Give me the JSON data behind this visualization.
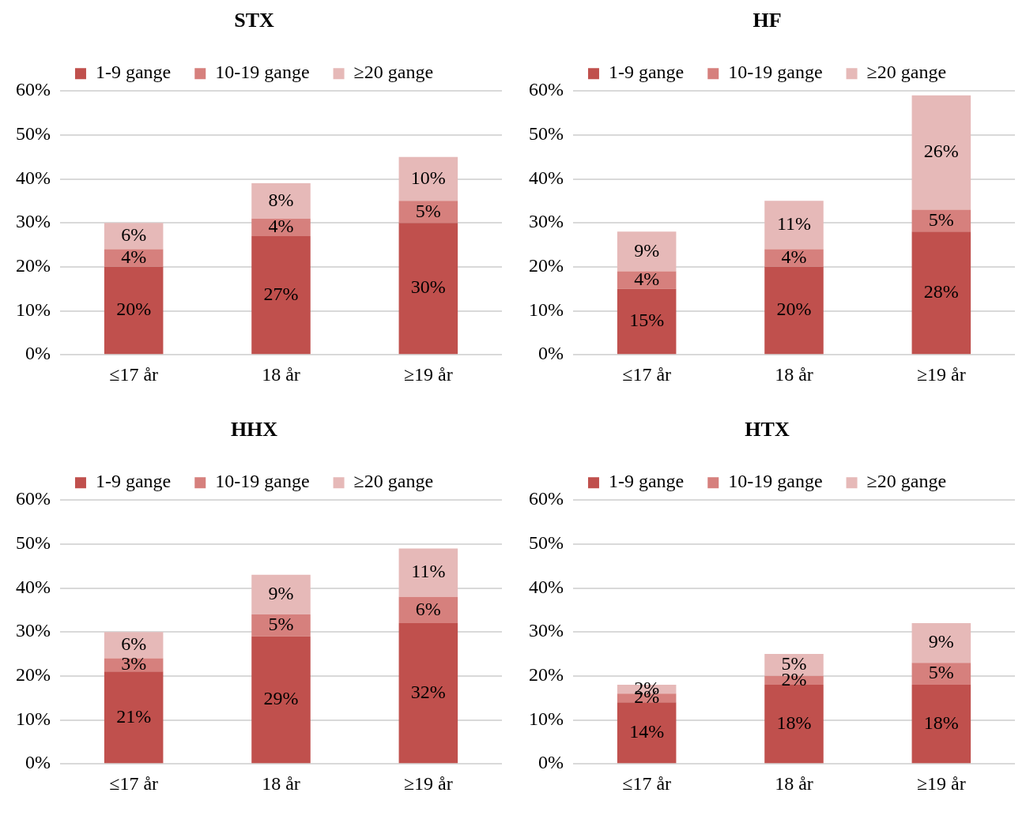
{
  "chart_data": [
    {
      "type": "bar",
      "title": "STX",
      "categories": [
        "≤17 år",
        "18 år",
        "≥19 år"
      ],
      "stacked": true,
      "legend": "top",
      "grid": "y",
      "ylim": [
        0,
        60
      ],
      "yticks": [
        {
          "value": 0,
          "label": "0%"
        },
        {
          "value": 10,
          "label": "10%"
        },
        {
          "value": 20,
          "label": "20%"
        },
        {
          "value": 30,
          "label": "30%"
        },
        {
          "value": 40,
          "label": "40%"
        },
        {
          "value": 50,
          "label": "50%"
        },
        {
          "value": 60,
          "label": "60%"
        }
      ],
      "series": [
        {
          "name": "1-9 gange",
          "color": "#c0504d",
          "values": [
            20,
            27,
            30
          ],
          "value_labels": [
            "20%",
            "27%",
            "30%"
          ]
        },
        {
          "name": "10-19 gange",
          "color": "#d6807d",
          "values": [
            4,
            4,
            5
          ],
          "value_labels": [
            "4%",
            "4%",
            "5%"
          ]
        },
        {
          "name": "≥20 gange",
          "color": "#e6b9b8",
          "values": [
            6,
            8,
            10
          ],
          "value_labels": [
            "6%",
            "8%",
            "10%"
          ]
        }
      ]
    },
    {
      "type": "bar",
      "title": "HF",
      "categories": [
        "≤17 år",
        "18 år",
        "≥19 år"
      ],
      "stacked": true,
      "legend": "top",
      "grid": "y",
      "ylim": [
        0,
        60
      ],
      "yticks": [
        {
          "value": 0,
          "label": "0%"
        },
        {
          "value": 10,
          "label": "10%"
        },
        {
          "value": 20,
          "label": "20%"
        },
        {
          "value": 30,
          "label": "30%"
        },
        {
          "value": 40,
          "label": "40%"
        },
        {
          "value": 50,
          "label": "50%"
        },
        {
          "value": 60,
          "label": "60%"
        }
      ],
      "series": [
        {
          "name": "1-9 gange",
          "color": "#c0504d",
          "values": [
            15,
            20,
            28
          ],
          "value_labels": [
            "15%",
            "20%",
            "28%"
          ]
        },
        {
          "name": "10-19 gange",
          "color": "#d6807d",
          "values": [
            4,
            4,
            5
          ],
          "value_labels": [
            "4%",
            "4%",
            "5%"
          ]
        },
        {
          "name": "≥20 gange",
          "color": "#e6b9b8",
          "values": [
            9,
            11,
            26
          ],
          "value_labels": [
            "9%",
            "11%",
            "26%"
          ]
        }
      ]
    },
    {
      "type": "bar",
      "title": "HHX",
      "categories": [
        "≤17 år",
        "18 år",
        "≥19 år"
      ],
      "stacked": true,
      "legend": "top",
      "grid": "y",
      "ylim": [
        0,
        60
      ],
      "yticks": [
        {
          "value": 0,
          "label": "0%"
        },
        {
          "value": 10,
          "label": "10%"
        },
        {
          "value": 20,
          "label": "20%"
        },
        {
          "value": 30,
          "label": "30%"
        },
        {
          "value": 40,
          "label": "40%"
        },
        {
          "value": 50,
          "label": "50%"
        },
        {
          "value": 60,
          "label": "60%"
        }
      ],
      "series": [
        {
          "name": "1-9 gange",
          "color": "#c0504d",
          "values": [
            21,
            29,
            32
          ],
          "value_labels": [
            "21%",
            "29%",
            "32%"
          ]
        },
        {
          "name": "10-19 gange",
          "color": "#d6807d",
          "values": [
            3,
            5,
            6
          ],
          "value_labels": [
            "3%",
            "5%",
            "6%"
          ]
        },
        {
          "name": "≥20 gange",
          "color": "#e6b9b8",
          "values": [
            6,
            9,
            11
          ],
          "value_labels": [
            "6%",
            "9%",
            "11%"
          ]
        }
      ]
    },
    {
      "type": "bar",
      "title": "HTX",
      "categories": [
        "≤17 år",
        "18 år",
        "≥19 år"
      ],
      "stacked": true,
      "legend": "top",
      "grid": "y",
      "ylim": [
        0,
        60
      ],
      "yticks": [
        {
          "value": 0,
          "label": "0%"
        },
        {
          "value": 10,
          "label": "10%"
        },
        {
          "value": 20,
          "label": "20%"
        },
        {
          "value": 30,
          "label": "30%"
        },
        {
          "value": 40,
          "label": "40%"
        },
        {
          "value": 50,
          "label": "50%"
        },
        {
          "value": 60,
          "label": "60%"
        }
      ],
      "series": [
        {
          "name": "1-9 gange",
          "color": "#c0504d",
          "values": [
            14,
            18,
            18
          ],
          "value_labels": [
            "14%",
            "18%",
            "18%"
          ]
        },
        {
          "name": "10-19 gange",
          "color": "#d6807d",
          "values": [
            2,
            2,
            5
          ],
          "value_labels": [
            "2%",
            "2%",
            "5%"
          ]
        },
        {
          "name": "≥20 gange",
          "color": "#e6b9b8",
          "values": [
            2,
            5,
            9
          ],
          "value_labels": [
            "2%",
            "5%",
            "9%"
          ]
        }
      ]
    }
  ]
}
